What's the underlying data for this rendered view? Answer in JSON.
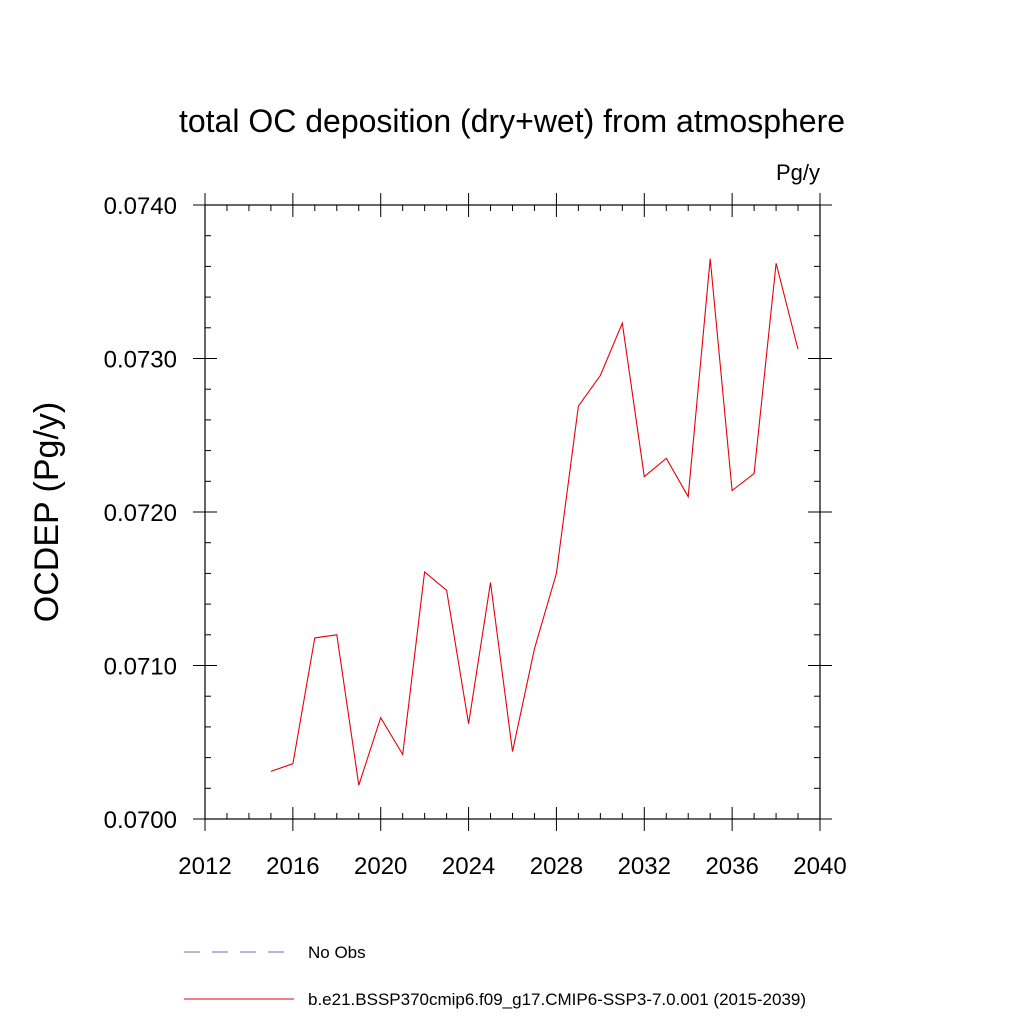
{
  "chart_data": {
    "type": "line",
    "title": "total OC deposition (dry+wet) from atmosphere",
    "units": "Pg/y",
    "xlabel": "",
    "ylabel": "OCDEP  (Pg/y)",
    "xlim": [
      2012,
      2040
    ],
    "ylim": [
      0.07,
      0.074
    ],
    "xticks": [
      2012,
      2016,
      2020,
      2024,
      2028,
      2032,
      2036,
      2040
    ],
    "xtick_labels": [
      "2012",
      "2016",
      "2020",
      "2024",
      "2028",
      "2032",
      "2036",
      "2040"
    ],
    "yticks": [
      0.07,
      0.071,
      0.072,
      0.073,
      0.074
    ],
    "ytick_labels": [
      "0.0700",
      "0.0710",
      "0.0720",
      "0.0730",
      "0.0740"
    ],
    "series": [
      {
        "name": "b.e21.BSSP370cmip6.f09_g17.CMIP6-SSP3-7.0.001 (2015-2039)",
        "color": "#e8000b",
        "x": [
          2015,
          2016,
          2017,
          2018,
          2019,
          2020,
          2021,
          2022,
          2023,
          2024,
          2025,
          2026,
          2027,
          2028,
          2029,
          2030,
          2031,
          2032,
          2033,
          2034,
          2035,
          2036,
          2037,
          2038,
          2039
        ],
        "values": [
          0.07031,
          0.07036,
          0.07118,
          0.0712,
          0.07022,
          0.07066,
          0.07042,
          0.07161,
          0.07149,
          0.07062,
          0.07154,
          0.07044,
          0.07111,
          0.0716,
          0.07269,
          0.07289,
          0.07323,
          0.07223,
          0.07235,
          0.0721,
          0.07365,
          0.07214,
          0.07225,
          0.07362,
          0.07306
        ]
      }
    ],
    "legend": [
      {
        "label": "No Obs",
        "style": "dashed",
        "color": "#7b68c8"
      },
      {
        "label": "b.e21.BSSP370cmip6.f09_g17.CMIP6-SSP3-7.0.001 (2015-2039)",
        "style": "solid",
        "color": "#e8000b"
      }
    ]
  }
}
